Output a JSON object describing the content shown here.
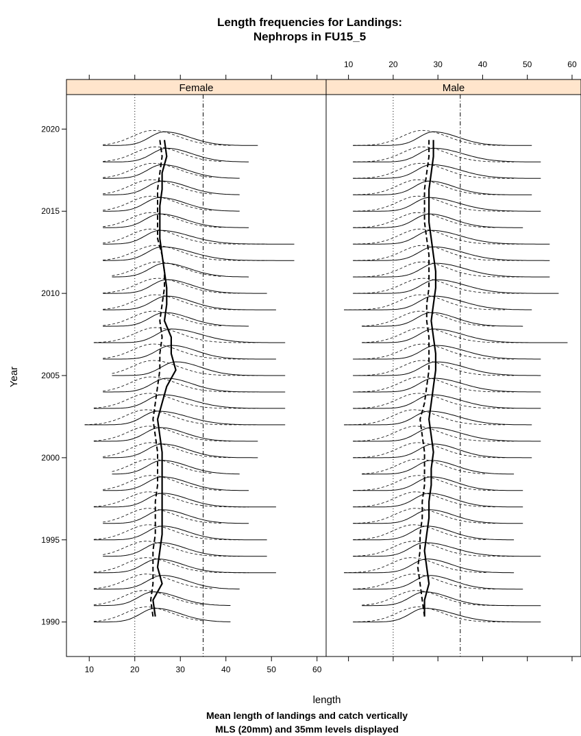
{
  "title_line1": "Length frequencies for Landings:",
  "title_line2": "Nephrops in FU15_5",
  "caption_line1": "Mean length of landings and catch vertically",
  "caption_line2": "MLS (20mm) and 35mm levels displayed",
  "chart_data": {
    "type": "line",
    "subtype": "ridgeline length-frequency",
    "xlabel": "length",
    "ylabel": "Year",
    "xlim": [
      5,
      62
    ],
    "ylim": [
      1987.9,
      2022.1
    ],
    "x_ticks": [
      10,
      20,
      30,
      40,
      50,
      60
    ],
    "y_ticks": [
      1990,
      1995,
      2000,
      2005,
      2010,
      2015,
      2020
    ],
    "reference_lines": [
      {
        "x": 20,
        "style": "dotted"
      },
      {
        "x": 35,
        "style": "dashed"
      }
    ],
    "panels": [
      {
        "name": "Female",
        "years": [
          1990,
          1991,
          1992,
          1993,
          1994,
          1995,
          1996,
          1997,
          1998,
          1999,
          2000,
          2001,
          2002,
          2003,
          2004,
          2005,
          2006,
          2007,
          2008,
          2009,
          2010,
          2011,
          2012,
          2013,
          2014,
          2015,
          2016,
          2017,
          2018,
          2019
        ],
        "x_min": [
          11,
          11,
          11,
          11,
          13,
          11,
          13,
          11,
          13,
          15,
          13,
          11,
          9,
          11,
          13,
          15,
          13,
          11,
          13,
          13,
          13,
          15,
          13,
          13,
          13,
          13,
          13,
          13,
          13,
          13
        ],
        "x_max": [
          41,
          41,
          43,
          51,
          49,
          49,
          45,
          51,
          45,
          43,
          47,
          47,
          53,
          53,
          53,
          53,
          51,
          53,
          45,
          51,
          49,
          45,
          55,
          55,
          45,
          43,
          43,
          43,
          45,
          47
        ],
        "mean_landings": [
          24.5,
          24.0,
          26.0,
          25.0,
          25.5,
          26.0,
          26.0,
          26.0,
          26.0,
          26.0,
          26.0,
          25.5,
          25.0,
          26.0,
          27.0,
          29.0,
          28.0,
          28.0,
          26.5,
          27.0,
          27.0,
          26.5,
          26.0,
          25.5,
          25.5,
          25.5,
          26.0,
          26.0,
          27.0,
          26.5
        ],
        "mean_catch": [
          24.0,
          23.5,
          24.0,
          24.0,
          24.0,
          24.5,
          24.5,
          24.5,
          25.0,
          25.0,
          25.0,
          24.5,
          24.0,
          24.5,
          25.0,
          25.5,
          25.5,
          26.0,
          25.5,
          26.0,
          26.5,
          26.5,
          26.0,
          25.0,
          25.0,
          25.0,
          25.0,
          25.5,
          26.0,
          25.5
        ]
      },
      {
        "name": "Male",
        "years": [
          1990,
          1991,
          1992,
          1993,
          1994,
          1995,
          1996,
          1997,
          1998,
          1999,
          2000,
          2001,
          2002,
          2003,
          2004,
          2005,
          2006,
          2007,
          2008,
          2009,
          2010,
          2011,
          2012,
          2013,
          2014,
          2015,
          2016,
          2017,
          2018,
          2019
        ],
        "x_min": [
          11,
          13,
          11,
          9,
          11,
          11,
          11,
          11,
          11,
          13,
          11,
          11,
          9,
          11,
          11,
          11,
          11,
          13,
          13,
          9,
          11,
          11,
          11,
          11,
          11,
          11,
          11,
          11,
          11,
          11
        ],
        "x_max": [
          53,
          53,
          49,
          47,
          53,
          47,
          49,
          49,
          49,
          47,
          51,
          53,
          51,
          53,
          53,
          53,
          53,
          59,
          49,
          51,
          57,
          55,
          55,
          55,
          49,
          53,
          51,
          53,
          53,
          51
        ],
        "mean_landings": [
          27.0,
          27.0,
          28.0,
          27.5,
          27.0,
          27.5,
          28.0,
          28.0,
          28.5,
          28.5,
          29.0,
          28.5,
          28.0,
          28.5,
          29.0,
          29.5,
          29.5,
          29.0,
          28.5,
          29.0,
          29.5,
          29.5,
          29.0,
          28.5,
          28.0,
          28.0,
          28.0,
          28.5,
          29.0,
          29.0
        ],
        "mean_catch": [
          27.0,
          26.5,
          26.0,
          25.5,
          26.0,
          26.0,
          26.5,
          26.5,
          27.0,
          27.0,
          27.0,
          26.5,
          26.0,
          27.0,
          27.5,
          28.0,
          28.0,
          28.0,
          27.5,
          27.5,
          28.0,
          28.0,
          28.0,
          27.5,
          27.0,
          27.0,
          27.0,
          27.5,
          28.0,
          28.0
        ]
      }
    ]
  }
}
